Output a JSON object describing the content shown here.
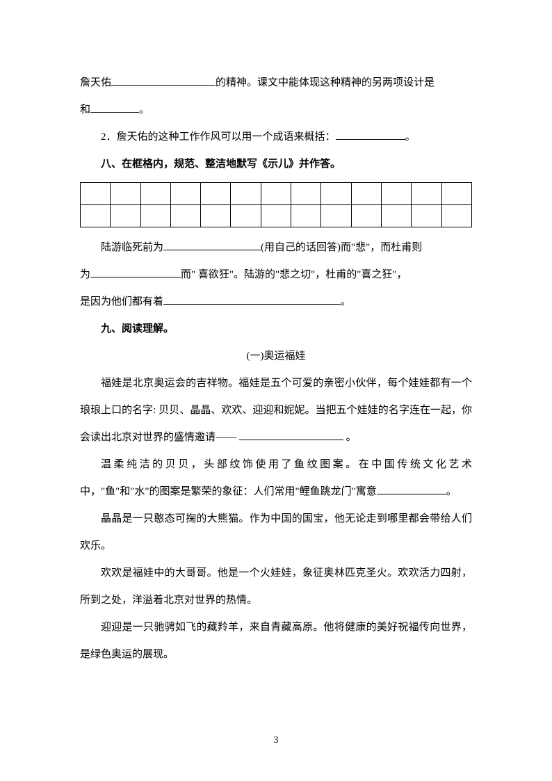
{
  "p1_a": "詹天佑",
  "p1_b": "的精神。课文中能体现这种精神的另两项设计是",
  "p2_a": "和",
  "p2_b": "。",
  "p3": "2．詹天佑的这种工作作风可以用一个成语来概括：",
  "p3_b": "。",
  "h8": "八、在框格内，规范、整洁地默写《示儿》并作答。",
  "table": {
    "rows": 2,
    "cols": 13
  },
  "p4_a": "陆游临死前为",
  "p4_b": "(用自己的话回答)而\"悲\"，而杜甫则",
  "p5_a": "为",
  "p5_b": "而\" 喜欲狂\"。陆游的\"悲之切\"，杜甫的\"喜之狂\"，",
  "p6_a": "是因为他们都有着",
  "p6_b": "。",
  "h9": "九、阅读理解。",
  "title1": "(一)奥运福娃",
  "p7": "福娃是北京奥运会的吉祥物。福娃是五个可爱的亲密小伙伴，每个娃娃都有一个琅琅上口的名字: 贝贝、晶晶、欢欢、迎迎和妮妮。当把五个娃娃的名字连在一起，你会读出北京对世界的盛情邀请—— ",
  "p7_b": " 。",
  "p8_a": "温柔纯洁的贝贝，头部纹饰使用了鱼纹图案。在中国传统文化艺术中，\"鱼\"和\"水\"的图案是繁荣的象征：人们常用\"鲤鱼跳龙门\"寓意",
  "p8_b": "。",
  "p9": "晶晶是一只憨态可掬的大熊猫。作为中国的国宝，他无论走到哪里都会带给人们欢乐。",
  "p10": "欢欢是福娃中的大哥哥。他是一个火娃娃，象征奥林匹克圣火。欢欢活力四射，所到之处，洋溢着北京对世界的热情。",
  "p11": "迎迎是一只驰骋如飞的藏羚羊，来自青藏高原。他将健康的美好祝福传向世界，是绿色奥运的展现。",
  "pageNumber": "3"
}
